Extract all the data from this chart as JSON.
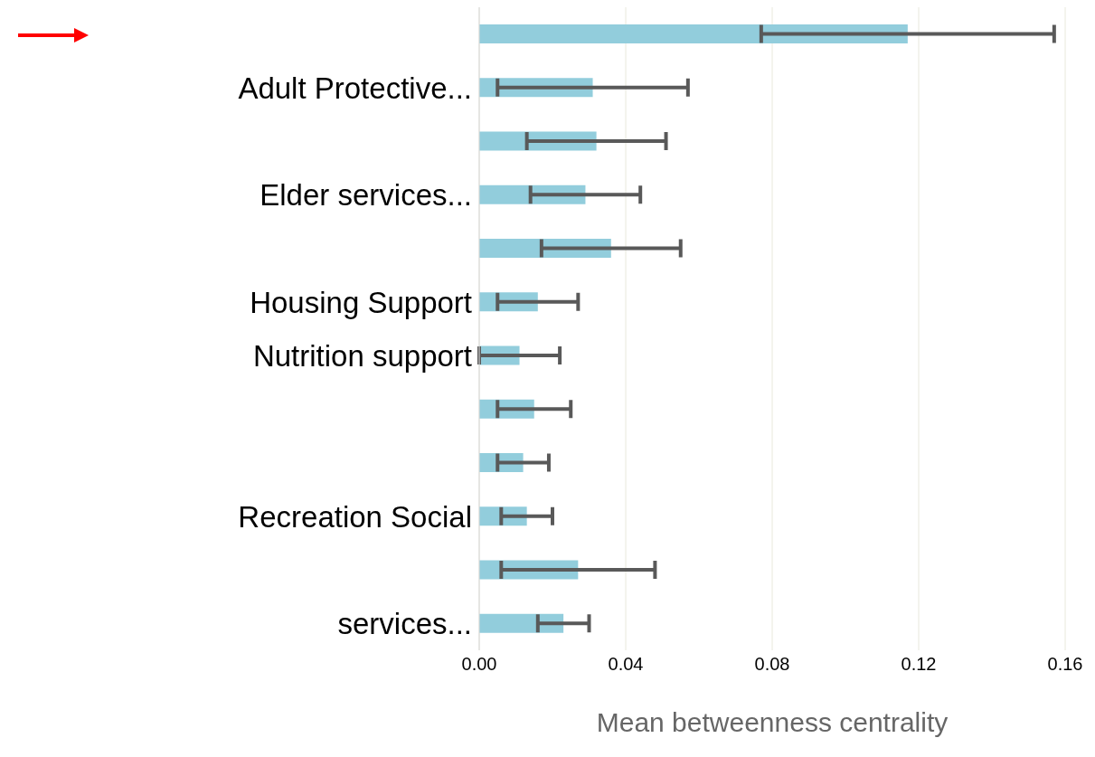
{
  "chart_data": {
    "type": "bar",
    "orientation": "horizontal",
    "xlabel": "Mean betweenness centrality",
    "categories": [
      null,
      "Adult Protective...",
      null,
      "Elder services...",
      null,
      "Housing Support",
      "Nutrition support",
      null,
      null,
      "Recreation Social",
      null,
      "services..."
    ],
    "values": [
      0.117,
      0.031,
      0.032,
      0.029,
      0.036,
      0.016,
      0.011,
      0.015,
      0.012,
      0.013,
      0.027,
      0.023
    ],
    "errors": [
      0.04,
      0.026,
      0.019,
      0.015,
      0.019,
      0.011,
      0.011,
      0.01,
      0.007,
      0.007,
      0.021,
      0.007
    ],
    "color": "#92cddc",
    "xlim": [
      0,
      0.16
    ],
    "xticks": [
      {
        "value": 0,
        "label": "0.00"
      },
      {
        "value": 0.04,
        "label": "0.04"
      },
      {
        "value": 0.08,
        "label": "0.08"
      },
      {
        "value": 0.12,
        "label": "0.12"
      },
      {
        "value": 0.16,
        "label": "0.16"
      }
    ],
    "grid": "x"
  }
}
